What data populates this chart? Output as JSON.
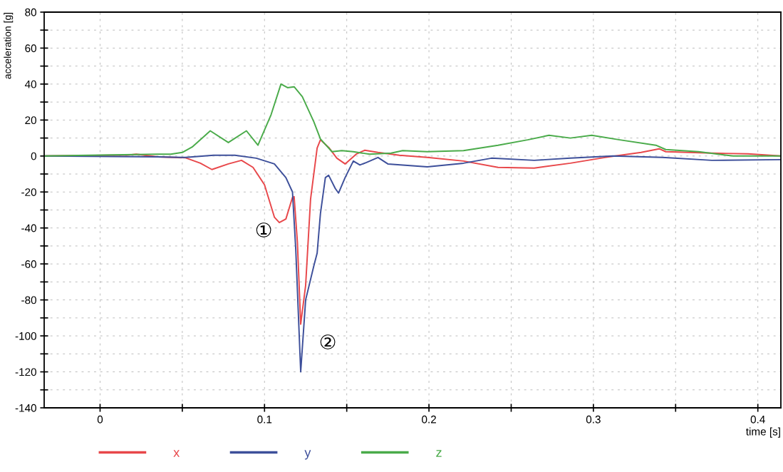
{
  "chart_data": {
    "type": "line",
    "xlabel": "time [s]",
    "ylabel": "acceleration [g]",
    "xlim": [
      -0.034,
      0.414
    ],
    "ylim": [
      -140,
      80
    ],
    "xticks": [
      0,
      {
        "value": 0.05,
        "label": null
      },
      0.1,
      {
        "value": 0.15,
        "label": null
      },
      0.2,
      {
        "value": 0.25,
        "label": null
      },
      0.3,
      {
        "value": 0.35,
        "label": null
      },
      0.4
    ],
    "yticks": [
      -140,
      {
        "value": -130,
        "label": null
      },
      -120,
      {
        "value": -110,
        "label": null
      },
      -100,
      {
        "value": -90,
        "label": null
      },
      -80,
      {
        "value": -70,
        "label": null
      },
      -60,
      {
        "value": -50,
        "label": null
      },
      -40,
      {
        "value": -30,
        "label": null
      },
      -20,
      {
        "value": -10,
        "label": null
      },
      0,
      {
        "value": 10,
        "label": null
      },
      20,
      {
        "value": 30,
        "label": null
      },
      40,
      {
        "value": 50,
        "label": null
      },
      60,
      {
        "value": 70,
        "label": null
      },
      80
    ],
    "grid": true,
    "legend": "bottom",
    "marker": "none",
    "line_style": "solid",
    "annotations": [
      "①",
      "②"
    ],
    "series": [
      {
        "name": "x",
        "color": "#e8474a",
        "x": [
          -0.034,
          0.017,
          0.022,
          0.035,
          0.052,
          0.061,
          0.068,
          0.078,
          0.086,
          0.093,
          0.1,
          0.106,
          0.109,
          0.113,
          0.117,
          0.118,
          0.12,
          0.122,
          0.125,
          0.128,
          0.132,
          0.134,
          0.139,
          0.144,
          0.149,
          0.156,
          0.161,
          0.169,
          0.182,
          0.199,
          0.221,
          0.242,
          0.264,
          0.286,
          0.307,
          0.329,
          0.34,
          0.344,
          0.372,
          0.394,
          0.414
        ],
        "values": [
          0,
          0.5,
          1,
          -0.5,
          -1,
          -4,
          -7.5,
          -4.4,
          -2.4,
          -6.3,
          -16,
          -34,
          -37,
          -35,
          -23,
          -22.6,
          -48,
          -93.5,
          -72,
          -24,
          4.4,
          9,
          4.8,
          -1.2,
          -4.4,
          1.2,
          3.2,
          2,
          0.4,
          -0.8,
          -2.8,
          -6.3,
          -6.7,
          -4,
          -0.8,
          2,
          4,
          2.4,
          1.6,
          1.2,
          0
        ]
      },
      {
        "name": "y",
        "color": "#3d4f9a",
        "x": [
          -0.034,
          0.035,
          0.052,
          0.069,
          0.082,
          0.095,
          0.106,
          0.113,
          0.117,
          0.119,
          0.122,
          0.125,
          0.13,
          0.132,
          0.134,
          0.137,
          0.139,
          0.143,
          0.145,
          0.149,
          0.154,
          0.158,
          0.162,
          0.169,
          0.175,
          0.199,
          0.221,
          0.238,
          0.264,
          0.286,
          0.312,
          0.342,
          0.372,
          0.414
        ],
        "values": [
          0,
          -0.5,
          -0.8,
          0.4,
          0.4,
          -1.2,
          -4.4,
          -12,
          -20,
          -52,
          -120,
          -80,
          -61,
          -54,
          -32,
          -12,
          -10.7,
          -18,
          -20.6,
          -12,
          -2.8,
          -5,
          -3.6,
          -0.8,
          -4.4,
          -6,
          -4,
          -1.2,
          -2.4,
          -1.2,
          0,
          -0.8,
          -2.4,
          -2
        ]
      },
      {
        "name": "z",
        "color": "#4aab4a",
        "x": [
          -0.034,
          0.035,
          0.043,
          0.05,
          0.056,
          0.067,
          0.078,
          0.089,
          0.096,
          0.104,
          0.11,
          0.114,
          0.118,
          0.123,
          0.13,
          0.134,
          0.141,
          0.147,
          0.154,
          0.164,
          0.177,
          0.184,
          0.199,
          0.221,
          0.242,
          0.26,
          0.273,
          0.286,
          0.299,
          0.316,
          0.338,
          0.344,
          0.364,
          0.385,
          0.414
        ],
        "values": [
          0,
          1,
          1,
          2,
          5,
          14,
          7.5,
          14,
          6,
          23,
          40,
          38,
          38.5,
          33,
          19,
          9.5,
          2.4,
          3,
          2.4,
          1,
          1.6,
          3,
          2.4,
          3,
          6,
          9,
          11.5,
          10,
          11.5,
          9,
          6,
          3.6,
          2.4,
          0,
          0
        ]
      }
    ]
  }
}
